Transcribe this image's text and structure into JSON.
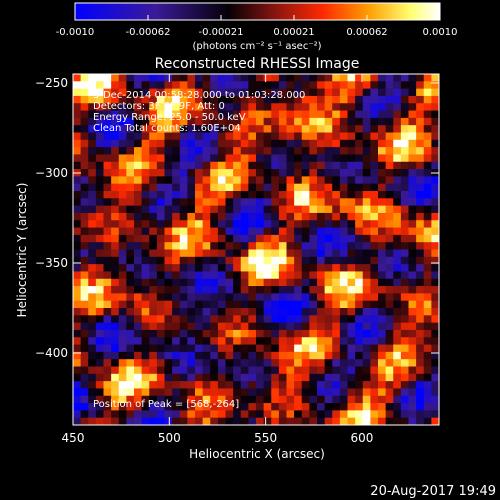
{
  "chart_data": {
    "type": "heatmap",
    "title": "Reconstructed RHESSI Image",
    "xlabel": "Heliocentric X (arcsec)",
    "ylabel": "Heliocentric Y (arcsec)",
    "xlim": [
      450,
      640
    ],
    "ylim": [
      -440,
      -245
    ],
    "xticks": [
      450,
      500,
      550,
      600
    ],
    "yticks": [
      -250,
      -300,
      -350,
      -400
    ],
    "colorbar": {
      "min": -0.001,
      "max": 0.001,
      "ticks": [
        "-0.0010",
        "-0.00062",
        "-0.00021",
        "0.00021",
        "0.00062",
        "0.0010"
      ],
      "units_label": "(photons cm⁻² s⁻¹ asec⁻²)",
      "colormap": [
        "#0000ff",
        "#2d0e8c",
        "#000000",
        "#7a1010",
        "#ff2800",
        "#ffa000",
        "#ffff64",
        "#ffffff"
      ]
    },
    "annotations": [
      "5-Dec-2014 00:58:28.000 to 01:03:28.000",
      "Detectors: 3F 6F 9F, Att: 0",
      "Energy Range: 25.0 - 50.0 keV",
      "Clean    Total counts: 1.60E+04"
    ],
    "peak_label": "Position of Peak = [568,-264]",
    "peak": {
      "x": 568,
      "y": -264
    },
    "grid_size": 48
  },
  "footer": {
    "timestamp": "20-Aug-2017 19:49"
  }
}
